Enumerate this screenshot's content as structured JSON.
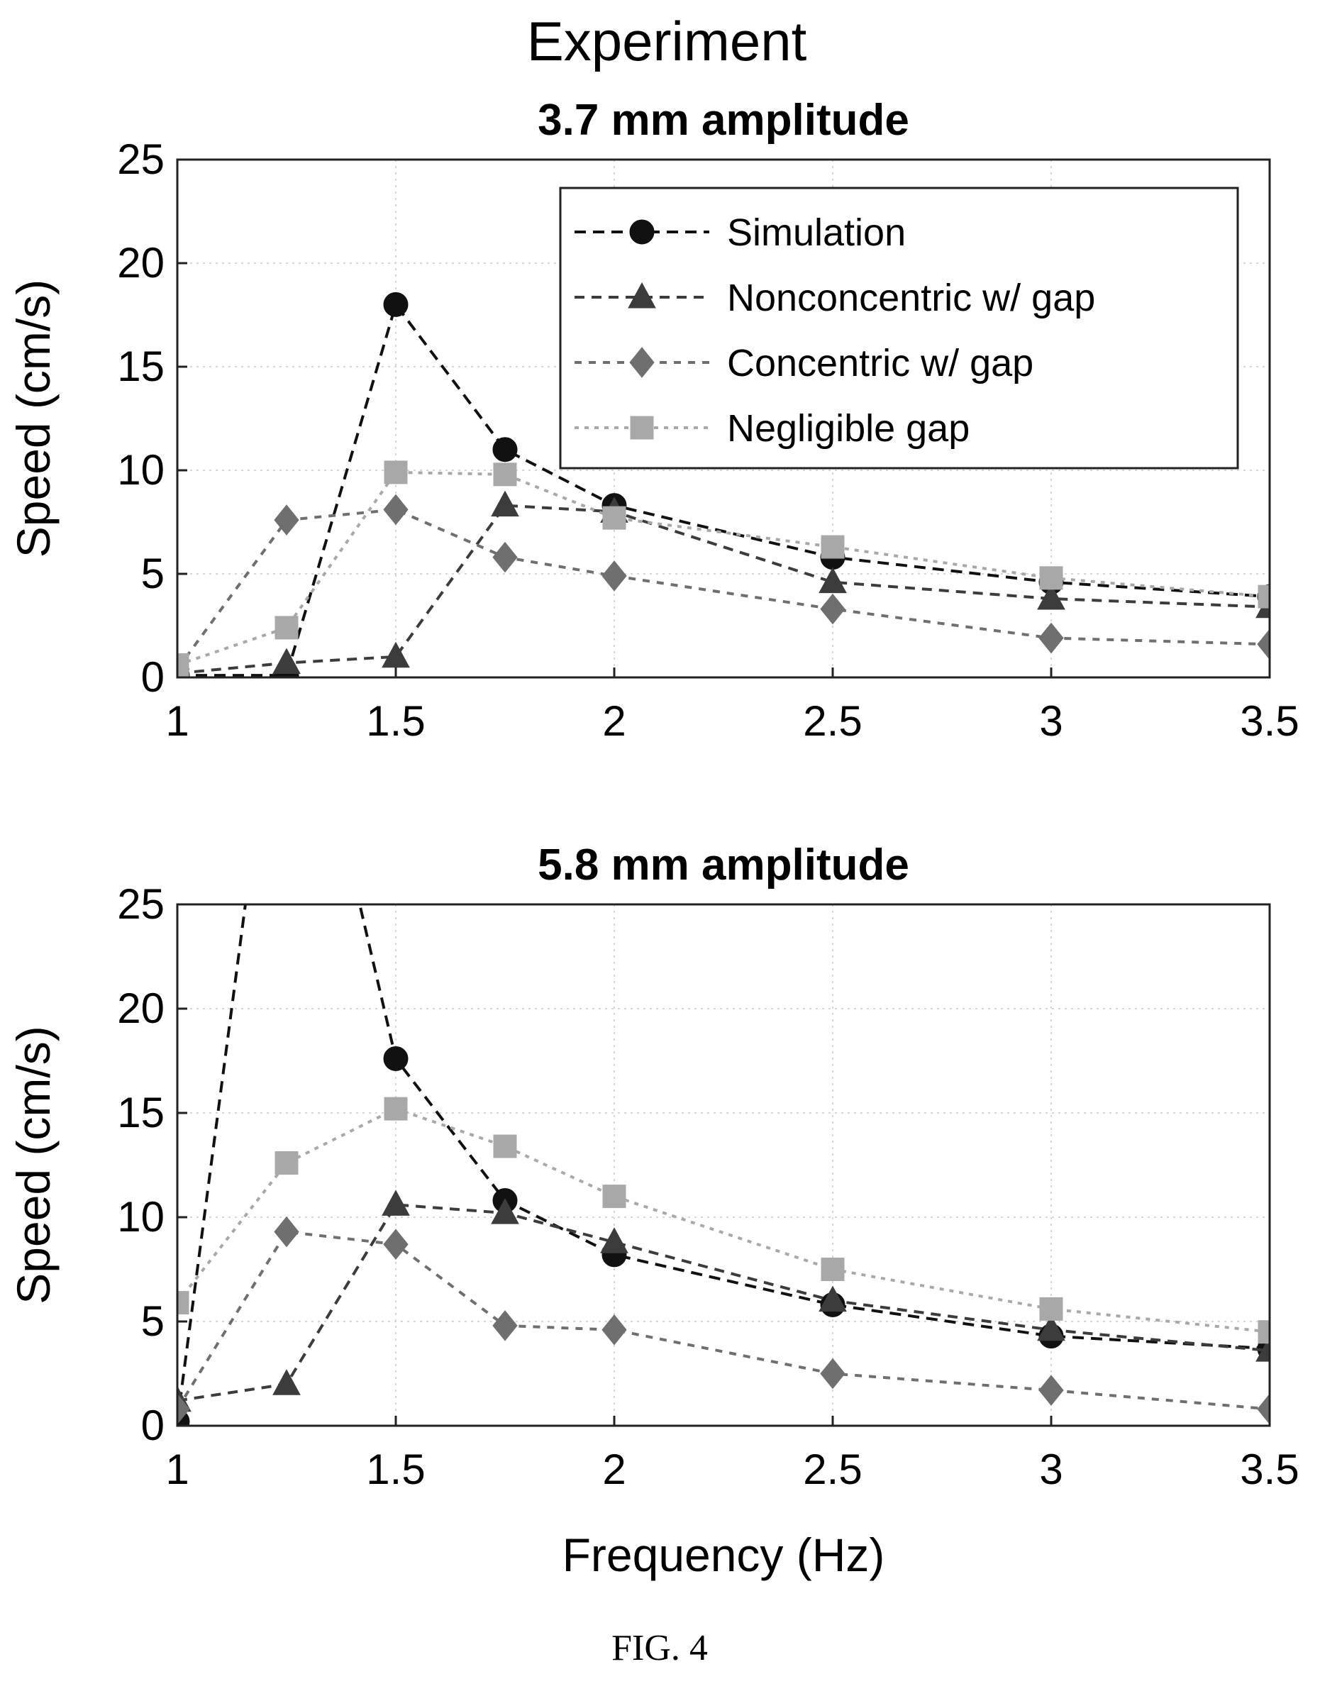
{
  "figure": {
    "suptitle": "Experiment",
    "caption": "FIG. 4",
    "xlabel": "Frequency (Hz)"
  },
  "colors": {
    "Simulation": "#111111",
    "Nonconcentric w/ gap": "#3c3c3c",
    "Concentric w/ gap": "#6f6f6f",
    "Negligible gap": "#a8a8a8"
  },
  "marker_shapes": {
    "Simulation": "circle",
    "Nonconcentric w/ gap": "triangle",
    "Concentric w/ gap": "diamond",
    "Negligible gap": "square"
  },
  "chart_data": [
    {
      "type": "line",
      "title": "3.7 mm amplitude",
      "xlabel": "",
      "ylabel": "Speed (cm/s)",
      "xlim": [
        1,
        3.5
      ],
      "ylim": [
        0,
        25
      ],
      "xticks": [
        1,
        1.5,
        2,
        2.5,
        3,
        3.5
      ],
      "xtick_labels": [
        "1",
        "1.5",
        "2",
        "2.5",
        "3",
        "3.5"
      ],
      "yticks": [
        0,
        5,
        10,
        15,
        20,
        25
      ],
      "ytick_labels": [
        "0",
        "5",
        "10",
        "15",
        "20",
        "25"
      ],
      "grid": true,
      "legend": "top-right",
      "x": [
        1,
        1.25,
        1.5,
        1.75,
        2,
        2.5,
        3,
        3.5
      ],
      "series": [
        {
          "name": "Simulation",
          "values": [
            0.1,
            0.1,
            18.0,
            11.0,
            8.3,
            5.8,
            4.6,
            3.9
          ]
        },
        {
          "name": "Nonconcentric w/ gap",
          "values": [
            0.2,
            0.7,
            1.0,
            8.3,
            8.0,
            4.6,
            3.8,
            3.4
          ]
        },
        {
          "name": "Concentric w/ gap",
          "values": [
            0.4,
            7.6,
            8.1,
            5.8,
            4.9,
            3.3,
            1.9,
            1.6
          ]
        },
        {
          "name": "Negligible gap",
          "values": [
            0.6,
            2.4,
            9.9,
            9.8,
            7.7,
            6.3,
            4.8,
            3.9
          ]
        }
      ]
    },
    {
      "type": "line",
      "title": "5.8 mm amplitude",
      "xlabel": "Frequency (Hz)",
      "ylabel": "Speed (cm/s)",
      "xlim": [
        1,
        3.5
      ],
      "ylim": [
        0,
        25
      ],
      "xticks": [
        1,
        1.5,
        2,
        2.5,
        3,
        3.5
      ],
      "xtick_labels": [
        "1",
        "1.5",
        "2",
        "2.5",
        "3",
        "3.5"
      ],
      "yticks": [
        0,
        5,
        10,
        15,
        20,
        25
      ],
      "ytick_labels": [
        "0",
        "5",
        "10",
        "15",
        "20",
        "25"
      ],
      "grid": true,
      "legend": "none",
      "x": [
        1,
        1.25,
        1.5,
        1.75,
        2,
        2.5,
        3,
        3.5
      ],
      "series": [
        {
          "name": "Simulation",
          "values": [
            0.2,
            40,
            17.6,
            10.8,
            8.2,
            5.8,
            4.3,
            3.7
          ]
        },
        {
          "name": "Nonconcentric w/ gap",
          "values": [
            1.2,
            2.0,
            10.6,
            10.2,
            8.8,
            6.0,
            4.6,
            3.6
          ]
        },
        {
          "name": "Concentric w/ gap",
          "values": [
            0.8,
            9.3,
            8.7,
            4.8,
            4.6,
            2.5,
            1.7,
            0.8
          ]
        },
        {
          "name": "Negligible gap",
          "values": [
            5.9,
            12.6,
            15.2,
            13.4,
            11.0,
            7.5,
            5.6,
            4.5
          ]
        }
      ]
    }
  ]
}
